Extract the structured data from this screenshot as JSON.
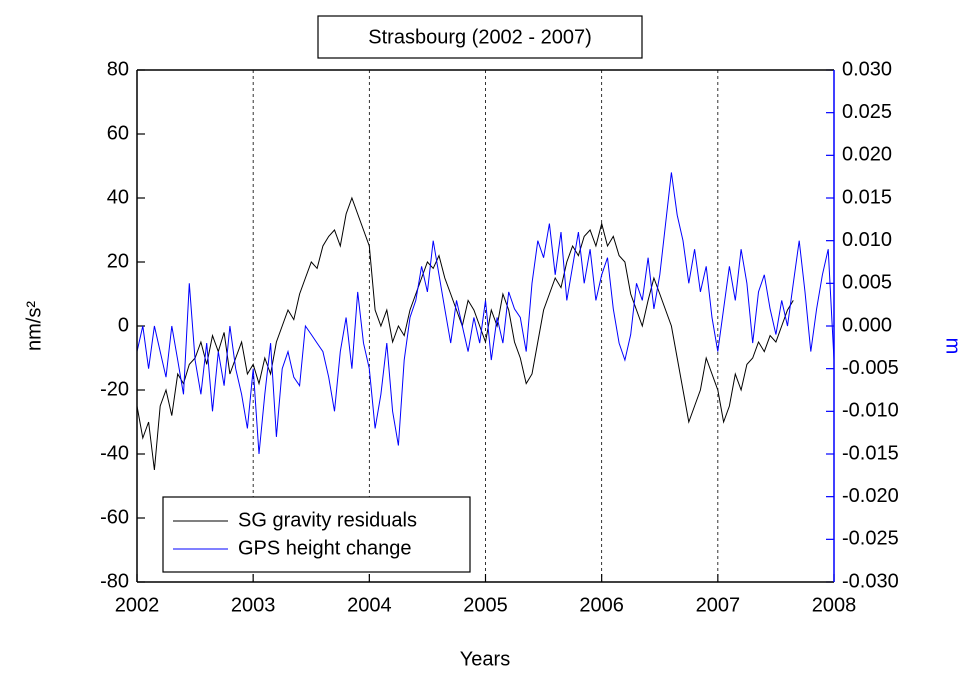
{
  "chart_data": {
    "type": "line",
    "title": "Strasbourg (2002 - 2007)",
    "x_label": "Years",
    "y_label": "nm/s²",
    "y2_label": "m",
    "x": [
      2002,
      2002.05,
      2002.1,
      2002.15,
      2002.2,
      2002.25,
      2002.3,
      2002.35,
      2002.4,
      2002.45,
      2002.5,
      2002.55,
      2002.6,
      2002.65,
      2002.7,
      2002.75,
      2002.8,
      2002.85,
      2002.9,
      2002.95,
      2003,
      2003.05,
      2003.1,
      2003.15,
      2003.2,
      2003.25,
      2003.3,
      2003.35,
      2003.4,
      2003.45,
      2003.5,
      2003.55,
      2003.6,
      2003.65,
      2003.7,
      2003.75,
      2003.8,
      2003.85,
      2003.9,
      2003.95,
      2004,
      2004.05,
      2004.1,
      2004.15,
      2004.2,
      2004.25,
      2004.3,
      2004.35,
      2004.4,
      2004.45,
      2004.5,
      2004.55,
      2004.6,
      2004.65,
      2004.7,
      2004.75,
      2004.8,
      2004.85,
      2004.9,
      2004.95,
      2005,
      2005.05,
      2005.1,
      2005.15,
      2005.2,
      2005.25,
      2005.3,
      2005.35,
      2005.4,
      2005.45,
      2005.5,
      2005.55,
      2005.6,
      2005.65,
      2005.7,
      2005.75,
      2005.8,
      2005.85,
      2005.9,
      2005.95,
      2006,
      2006.05,
      2006.1,
      2006.15,
      2006.2,
      2006.25,
      2006.3,
      2006.35,
      2006.4,
      2006.45,
      2006.5,
      2006.55,
      2006.6,
      2006.65,
      2006.7,
      2006.75,
      2006.8,
      2006.85,
      2006.9,
      2006.95,
      2007,
      2007.05,
      2007.1,
      2007.15,
      2007.2,
      2007.25,
      2007.3,
      2007.35,
      2007.4,
      2007.45,
      2007.5,
      2007.55,
      2007.6,
      2007.65,
      2007.7,
      2007.75,
      2007.8,
      2007.85,
      2007.9,
      2007.95,
      2008
    ],
    "series": [
      {
        "name": "SG gravity residuals",
        "color": "#000000",
        "axis": "y",
        "values": [
          -25,
          -35,
          -30,
          -45,
          -25,
          -20,
          -28,
          -15,
          -18,
          -12,
          -10,
          -5,
          -12,
          -3,
          -8,
          -2,
          -15,
          -10,
          -5,
          -15,
          -12,
          -18,
          -10,
          -15,
          -5,
          0,
          5,
          2,
          10,
          15,
          20,
          18,
          25,
          28,
          30,
          25,
          35,
          40,
          35,
          30,
          25,
          5,
          0,
          5,
          -5,
          0,
          -3,
          5,
          10,
          15,
          20,
          18,
          22,
          15,
          10,
          5,
          0,
          8,
          5,
          0,
          -5,
          5,
          0,
          10,
          5,
          -5,
          -10,
          -18,
          -15,
          -5,
          5,
          10,
          15,
          12,
          20,
          25,
          22,
          28,
          30,
          25,
          32,
          25,
          28,
          22,
          20,
          10,
          5,
          0,
          8,
          15,
          10,
          5,
          0,
          -10,
          -20,
          -30,
          -25,
          -20,
          -10,
          -15,
          -20,
          -30,
          -25,
          -15,
          -20,
          -12,
          -10,
          -5,
          -8,
          -3,
          -5,
          0,
          5,
          8,
          null,
          null,
          null,
          null,
          null,
          null,
          null
        ]
      },
      {
        "name": "GPS height change",
        "color": "#0000ff",
        "axis": "y2",
        "values": [
          -0.003,
          0,
          -0.005,
          0,
          -0.003,
          -0.006,
          0,
          -0.004,
          -0.008,
          0.005,
          -0.004,
          -0.008,
          -0.002,
          -0.01,
          -0.003,
          -0.007,
          0,
          -0.005,
          -0.008,
          -0.012,
          -0.005,
          -0.015,
          -0.008,
          -0.002,
          -0.013,
          -0.005,
          -0.003,
          -0.006,
          -0.007,
          0,
          -0.001,
          -0.002,
          -0.003,
          -0.006,
          -0.01,
          -0.003,
          0.001,
          -0.005,
          0.004,
          -0.002,
          -0.005,
          -0.012,
          -0.008,
          -0.002,
          -0.01,
          -0.014,
          -0.004,
          0.001,
          0.003,
          0.007,
          0.004,
          0.01,
          0.006,
          0.002,
          -0.002,
          0.003,
          0,
          -0.003,
          0.001,
          -0.002,
          0.003,
          -0.004,
          0.001,
          -0.002,
          0.004,
          0.002,
          0.001,
          -0.003,
          0.005,
          0.01,
          0.008,
          0.012,
          0.006,
          0.011,
          0.003,
          0.007,
          0.011,
          0.005,
          0.009,
          0.003,
          0.006,
          0.008,
          0.002,
          -0.002,
          -0.004,
          -0.001,
          0.005,
          0.003,
          0.008,
          0.002,
          0.006,
          0.012,
          0.018,
          0.013,
          0.01,
          0.005,
          0.009,
          0.004,
          0.007,
          0.001,
          -0.003,
          0.002,
          0.007,
          0.003,
          0.009,
          0.005,
          -0.002,
          0.004,
          0.006,
          0.002,
          -0.001,
          0.003,
          0,
          0.005,
          0.01,
          0.004,
          -0.003,
          0.002,
          0.006,
          0.009,
          -0.004
        ]
      }
    ],
    "xlim": [
      2002,
      2008
    ],
    "xticks": [
      2002,
      2003,
      2004,
      2005,
      2006,
      2007,
      2008
    ],
    "ylim": [
      -80,
      80
    ],
    "yticks": [
      -80,
      -60,
      -40,
      -20,
      0,
      20,
      40,
      60,
      80
    ],
    "y2lim": [
      -0.03,
      0.03
    ],
    "y2ticks": [
      {
        "value": -0.03,
        "label": "-0.030"
      },
      {
        "value": -0.025,
        "label": "-0.025"
      },
      {
        "value": -0.02,
        "label": "-0.020"
      },
      {
        "value": -0.015,
        "label": "-0.015"
      },
      {
        "value": -0.01,
        "label": "-0.010"
      },
      {
        "value": -0.005,
        "label": "-0.005"
      },
      {
        "value": 0,
        "label": "0.000"
      },
      {
        "value": 0.005,
        "label": "0.005"
      },
      {
        "value": 0.01,
        "label": "0.010"
      },
      {
        "value": 0.015,
        "label": "0.015"
      },
      {
        "value": 0.02,
        "label": "0.020"
      },
      {
        "value": 0.025,
        "label": "0.025"
      },
      {
        "value": 0.03,
        "label": "0.030"
      }
    ],
    "y2_color": "#0000ff",
    "x_grid": true,
    "legend": "lower left"
  }
}
